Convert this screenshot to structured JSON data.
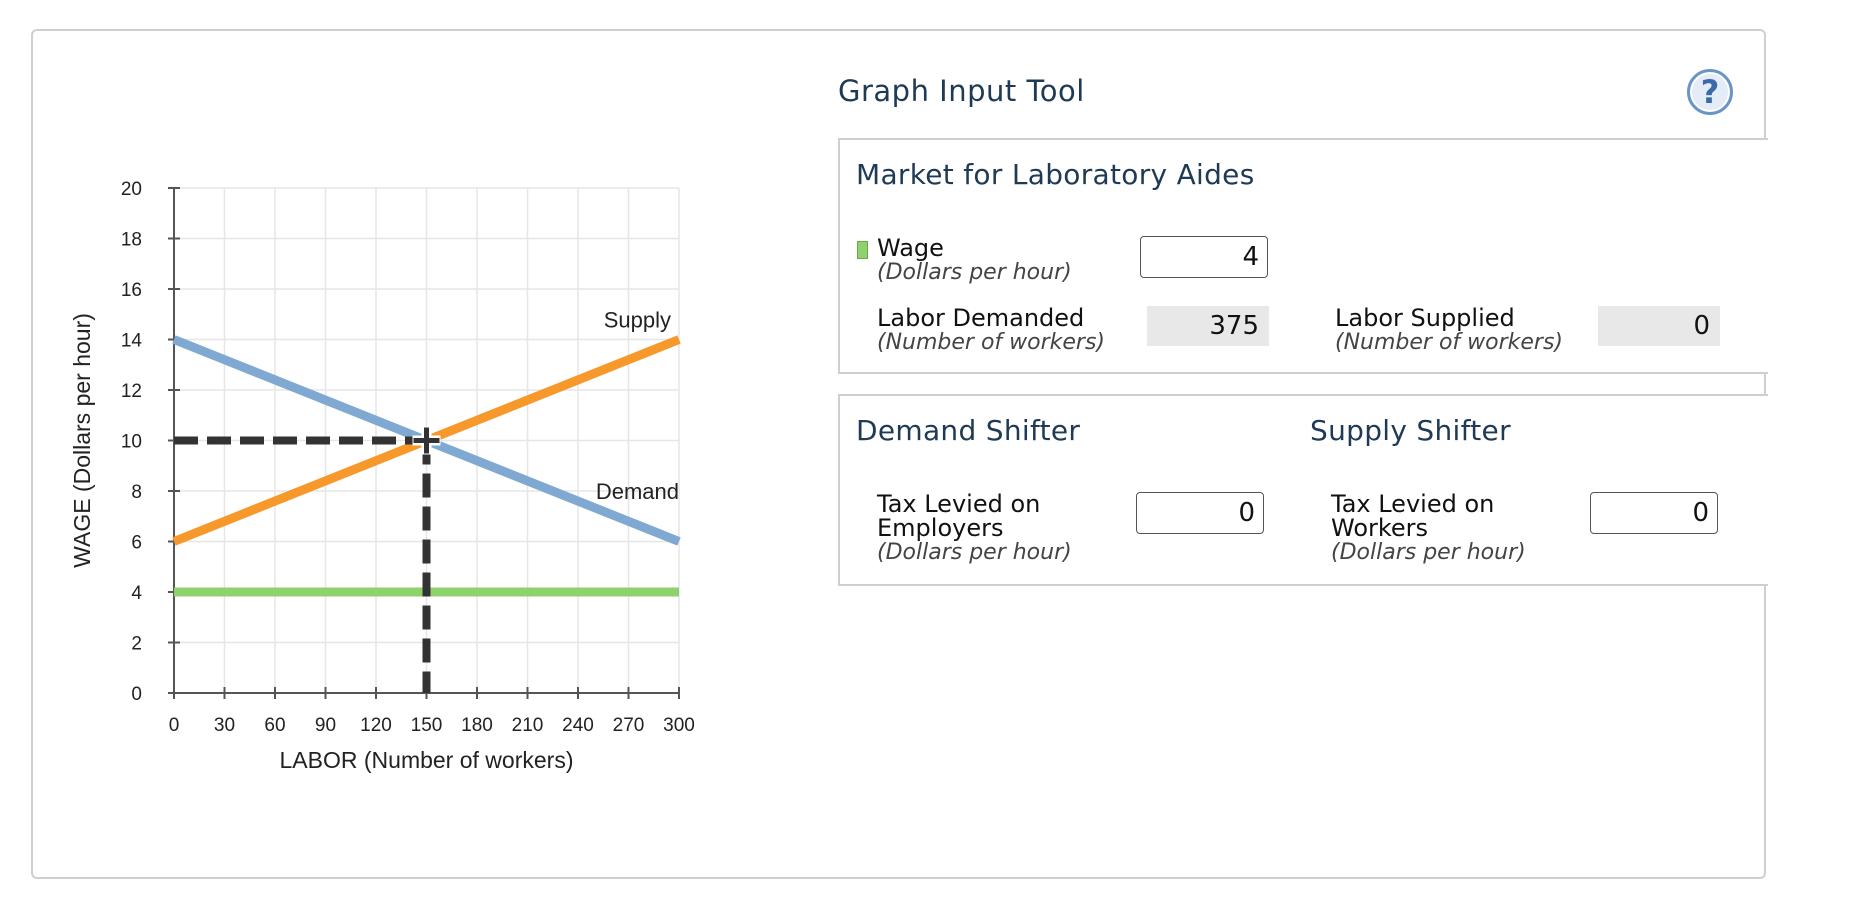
{
  "panel": {
    "title": "Graph Input Tool",
    "help_icon": "?"
  },
  "market": {
    "title": "Market for Laboratory Aides",
    "wage_label": "Wage",
    "wage_unit": "(Dollars per hour)",
    "wage_value": "4",
    "wage_swatch_color": "#8fd16a",
    "labor_demanded_label": "Labor Demanded",
    "labor_demanded_unit": "(Number of workers)",
    "labor_demanded_value": "375",
    "labor_supplied_label": "Labor Supplied",
    "labor_supplied_unit": "(Number of workers)",
    "labor_supplied_value": "0"
  },
  "shifters": {
    "demand_title": "Demand Shifter",
    "supply_title": "Supply Shifter",
    "demand_tax_label_line1": "Tax Levied on",
    "demand_tax_label_line2": "Employers",
    "demand_tax_unit": "(Dollars per hour)",
    "demand_tax_value": "0",
    "supply_tax_label_line1": "Tax Levied on",
    "supply_tax_label_line2": "Workers",
    "supply_tax_unit": "(Dollars per hour)",
    "supply_tax_value": "0"
  },
  "chart_data": {
    "type": "line",
    "xlabel": "LABOR (Number of workers)",
    "ylabel": "WAGE (Dollars per hour)",
    "xlim": [
      0,
      300
    ],
    "ylim": [
      0,
      20
    ],
    "xticks": [
      0,
      30,
      60,
      90,
      120,
      150,
      180,
      210,
      240,
      270,
      300
    ],
    "yticks": [
      0,
      2,
      4,
      6,
      8,
      10,
      12,
      14,
      16,
      18,
      20
    ],
    "grid": true,
    "series": [
      {
        "name": "Demand",
        "color": "#7fa9d1",
        "points": [
          [
            0,
            14
          ],
          [
            300,
            6
          ]
        ]
      },
      {
        "name": "Supply",
        "color": "#f7982a",
        "points": [
          [
            0,
            6
          ],
          [
            300,
            14
          ]
        ]
      },
      {
        "name": "",
        "color": "#8fd16a",
        "points": [
          [
            0,
            4
          ],
          [
            300,
            4
          ]
        ]
      }
    ],
    "equilibrium": {
      "x": 150,
      "y": 10,
      "color": "#333333"
    },
    "annotations": [
      {
        "text": "Supply",
        "x": 300,
        "y": 14
      },
      {
        "text": "Demand",
        "x": 300,
        "y": 8
      }
    ]
  }
}
